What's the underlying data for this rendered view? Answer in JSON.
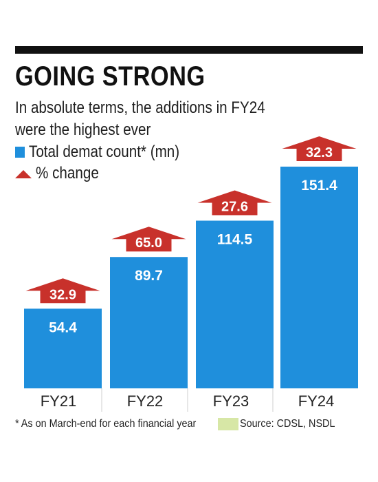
{
  "header": {
    "title": "GOING STRONG",
    "subtitle": "In absolute terms, the additions in FY24 were the highest ever"
  },
  "legend": {
    "bar_label": "Total demat count* (mn)",
    "change_label": "% change"
  },
  "colors": {
    "bar": "#1f8fdc",
    "arrow": "#c8312b",
    "bar_text": "#ffffff",
    "title": "#111111"
  },
  "footer": {
    "note": "* As on March-end for each financial year",
    "source": "Source: CDSL, NSDL"
  },
  "chart_data": {
    "type": "bar",
    "categories": [
      "FY21",
      "FY22",
      "FY23",
      "FY24"
    ],
    "series": [
      {
        "name": "Total demat count* (mn)",
        "values": [
          54.4,
          89.7,
          114.5,
          151.4
        ]
      },
      {
        "name": "% change",
        "values": [
          32.9,
          65.0,
          27.6,
          32.3
        ]
      }
    ],
    "value_labels": [
      "54.4",
      "89.7",
      "114.5",
      "151.4"
    ],
    "change_labels": [
      "32.9",
      "65.0",
      "27.6",
      "32.3"
    ],
    "title": "GOING STRONG",
    "ylim": [
      0,
      151.4
    ],
    "grid": false
  }
}
